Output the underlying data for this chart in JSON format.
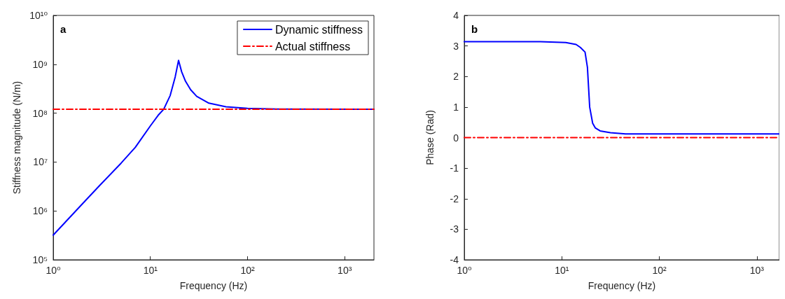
{
  "chart_data": [
    {
      "type": "line",
      "annotations": [
        "a"
      ],
      "xlabel": "Frequency (Hz)",
      "ylabel": "Stiffness magnitude (N/m)",
      "log": "xy",
      "grid": false,
      "legend": "top right",
      "marker": "none",
      "xlim": [
        1,
        2000
      ],
      "xticks": [
        {
          "value": 1,
          "label": "10⁰"
        },
        {
          "value": 10,
          "label": "10¹"
        },
        {
          "value": 100,
          "label": "10²"
        },
        {
          "value": 1000,
          "label": "10³"
        }
      ],
      "ylim": [
        100000,
        10000000000
      ],
      "yticks": [
        {
          "value": 100000,
          "label": "10⁵"
        },
        {
          "value": 1000000,
          "label": "10⁶"
        },
        {
          "value": 10000000,
          "label": "10⁷"
        },
        {
          "value": 100000000,
          "label": "10⁸"
        },
        {
          "value": 1000000000,
          "label": "10⁹"
        },
        {
          "value": 10000000000,
          "label": "10¹⁰"
        }
      ],
      "series": [
        {
          "name": "Dynamic stiffness",
          "color": "#0000ff",
          "line_style": "solid",
          "x": [
            1,
            2,
            3,
            5,
            7,
            10,
            12,
            13.7,
            16,
            18,
            19.5,
            21,
            23,
            26,
            30,
            40,
            60,
            100,
            200,
            2000
          ],
          "values": [
            320000,
            1400000,
            3300000,
            9500000,
            20000000,
            55000000,
            90000000,
            120000000,
            230000000,
            550000000,
            1200000000,
            700000000,
            450000000,
            300000000,
            220000000,
            160000000,
            135000000,
            125000000,
            121000000,
            120000000
          ]
        },
        {
          "name": "Actual stiffness",
          "color": "#ff0000",
          "line_style": "dashed",
          "x": [
            1,
            2000
          ],
          "values": [
            120000000,
            120000000
          ]
        }
      ]
    },
    {
      "type": "line",
      "annotations": [
        "b"
      ],
      "xlabel": "Frequency (Hz)",
      "ylabel": "Phase (Rad)",
      "log": "x",
      "grid": false,
      "legend": false,
      "marker": "none",
      "xlim": [
        1,
        1700
      ],
      "xticks": [
        {
          "value": 1,
          "label": "10⁰"
        },
        {
          "value": 10,
          "label": "10¹"
        },
        {
          "value": 100,
          "label": "10²"
        },
        {
          "value": 1000,
          "label": "10³"
        }
      ],
      "ylim": [
        -4,
        4
      ],
      "yticks": [
        -4,
        -3,
        -2,
        -1,
        0,
        1,
        2,
        3,
        4
      ],
      "series": [
        {
          "color": "#0000ff",
          "line_style": "solid",
          "x": [
            1,
            6,
            11,
            14,
            15.5,
            17.3,
            18.3,
            19.3,
            20.7,
            22,
            24.7,
            31.5,
            45,
            1700
          ],
          "values": [
            3.14,
            3.14,
            3.11,
            3.05,
            2.95,
            2.8,
            2.3,
            1.0,
            0.47,
            0.32,
            0.22,
            0.16,
            0.12,
            0.12
          ]
        },
        {
          "color": "#ff0000",
          "line_style": "dashed",
          "x": [
            1,
            1700
          ],
          "values": [
            0,
            0
          ]
        }
      ]
    }
  ]
}
